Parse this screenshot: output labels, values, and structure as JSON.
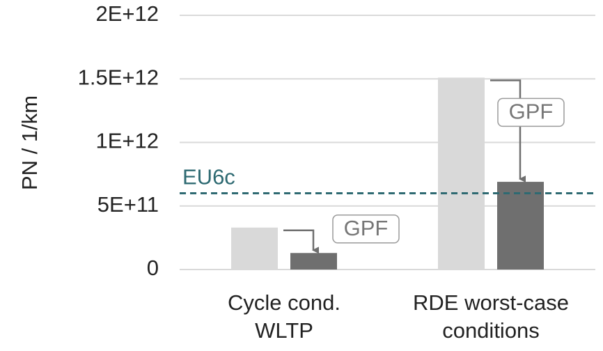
{
  "chart_data": {
    "type": "bar",
    "ylabel": "PN / 1/km",
    "categories": [
      [
        "Cycle cond.",
        "WLTP"
      ],
      [
        "RDE worst-case",
        "conditions"
      ]
    ],
    "series": [
      {
        "color": "#d9d9d9",
        "values": [
          330000000000,
          1510000000000
        ]
      },
      {
        "color": "#6f6f6f",
        "values": [
          130000000000,
          690000000000
        ]
      }
    ],
    "ylim": [
      0,
      2000000000000
    ],
    "yticks": [
      0,
      {
        "value": 500000000000,
        "label": "5E+11"
      },
      {
        "value": 1000000000000,
        "label": "1E+12"
      },
      {
        "value": 1500000000000,
        "label": "1.5E+12"
      },
      {
        "value": 2000000000000,
        "label": "2E+12"
      }
    ],
    "grid": true,
    "reference_line": {
      "label": "EU6c",
      "value": 600000000000,
      "color": "#2e6a72"
    },
    "annotations": [
      "GPF",
      "GPF"
    ]
  }
}
